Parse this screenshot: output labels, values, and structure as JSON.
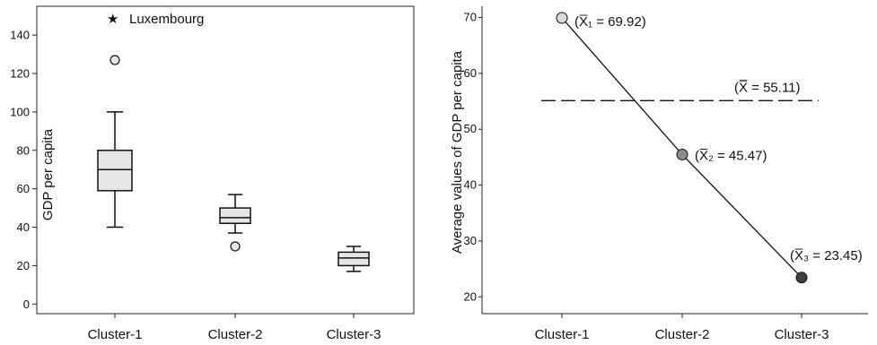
{
  "chart_data": [
    {
      "type": "box",
      "categories": [
        "Cluster-1",
        "Cluster-2",
        "Cluster-3"
      ],
      "ylabel": "GDP per capita",
      "ylim": [
        -5,
        155
      ],
      "yticks": [
        0,
        20,
        40,
        60,
        80,
        100,
        120,
        140
      ],
      "grid": false,
      "boxes": [
        {
          "category": "Cluster-1",
          "whisker_low": 40,
          "q1": 59,
          "median": 70,
          "q3": 80,
          "whisker_high": 100,
          "outliers": [
            127
          ]
        },
        {
          "category": "Cluster-2",
          "whisker_low": 37,
          "q1": 42,
          "median": 45,
          "q3": 50,
          "whisker_high": 57,
          "outliers": [
            30
          ]
        },
        {
          "category": "Cluster-3",
          "whisker_low": 17,
          "q1": 20,
          "median": 24,
          "q3": 27,
          "whisker_high": 30,
          "outliers": []
        }
      ],
      "annotation": {
        "symbol": "★",
        "label": "Luxembourg",
        "value": 149
      }
    },
    {
      "type": "line",
      "categories": [
        "Cluster-1",
        "Cluster-2",
        "Cluster-3"
      ],
      "ylabel": "Average values of GDP per capita",
      "ylim": [
        17,
        72
      ],
      "yticks": [
        20,
        30,
        40,
        50,
        60,
        70
      ],
      "grid": false,
      "values": [
        69.92,
        45.47,
        23.45
      ],
      "point_colors": [
        "#d9d9d9",
        "#8c8c8c",
        "#3f3f3f"
      ],
      "point_labels": [
        "(X̅₁ = 69.92)",
        "(X̅₂ = 45.47)",
        "(X̅₃ = 23.45)"
      ],
      "reference_line": {
        "value": 55.11,
        "label": "(X̿ = 55.11)",
        "style": "dashed"
      }
    }
  ]
}
